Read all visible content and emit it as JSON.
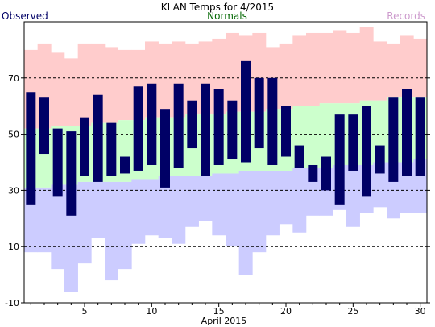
{
  "chart_data": {
    "type": "bar",
    "title": "KLAN Temps for 4/2015",
    "xlabel": "April 2015",
    "ylabel": "",
    "legend": [
      {
        "label": "Observed",
        "color": "#000066",
        "position": "top-left"
      },
      {
        "label": "Normals",
        "color": "#006600",
        "position": "top-center"
      },
      {
        "label": "Records",
        "color": "#cc99cc",
        "position": "top-right"
      }
    ],
    "colors": {
      "record": "#ffcccc",
      "normal": "#ccffcc",
      "record_low": "#ccccff",
      "observed": "#000066",
      "gridline": "#000000",
      "axis": "#000000"
    },
    "xlim": [
      0.5,
      30.5
    ],
    "ylim": [
      -10,
      90
    ],
    "y_ticks": [
      -10,
      10,
      30,
      50,
      70
    ],
    "y_gridlines": [
      10,
      30,
      50,
      70
    ],
    "x_tick_labels": [
      5,
      10,
      15,
      20,
      25,
      30
    ],
    "days": [
      1,
      2,
      3,
      4,
      5,
      6,
      7,
      8,
      9,
      10,
      11,
      12,
      13,
      14,
      15,
      16,
      17,
      18,
      19,
      20,
      21,
      22,
      23,
      24,
      25,
      26,
      27,
      28,
      29,
      30
    ],
    "series": [
      {
        "name": "Observed",
        "high": [
          65,
          63,
          52,
          51,
          56,
          64,
          54,
          42,
          67,
          68,
          59,
          68,
          62,
          68,
          66,
          62,
          76,
          70,
          70,
          60,
          46,
          39,
          42,
          57,
          57,
          60,
          46,
          63,
          66,
          63
        ],
        "low": [
          25,
          43,
          28,
          21,
          35,
          33,
          35,
          36,
          37,
          39,
          31,
          38,
          45,
          35,
          39,
          41,
          40,
          45,
          39,
          42,
          38,
          33,
          30,
          25,
          37,
          28,
          36,
          33,
          35,
          35
        ]
      },
      {
        "name": "Normals",
        "high": [
          52,
          52,
          53,
          53,
          53,
          54,
          54,
          55,
          55,
          56,
          56,
          56,
          57,
          57,
          57,
          58,
          58,
          58,
          59,
          59,
          60,
          60,
          61,
          61,
          61,
          62,
          62,
          63,
          63,
          63
        ],
        "low": [
          31,
          31,
          32,
          32,
          33,
          33,
          33,
          33,
          34,
          34,
          35,
          35,
          35,
          35,
          36,
          36,
          37,
          37,
          37,
          37,
          38,
          38,
          38,
          39,
          39,
          39,
          40,
          40,
          40,
          41
        ]
      },
      {
        "name": "Records",
        "high": [
          80,
          82,
          79,
          77,
          82,
          82,
          81,
          80,
          80,
          83,
          82,
          83,
          82,
          83,
          84,
          86,
          85,
          86,
          81,
          82,
          85,
          86,
          86,
          87,
          86,
          88,
          83,
          82,
          85,
          84
        ],
        "low": [
          8,
          8,
          2,
          -6,
          4,
          13,
          -2,
          2,
          11,
          14,
          13,
          11,
          17,
          19,
          14,
          10,
          0,
          8,
          14,
          18,
          15,
          21,
          21,
          23,
          17,
          22,
          24,
          20,
          22,
          22
        ]
      }
    ]
  }
}
